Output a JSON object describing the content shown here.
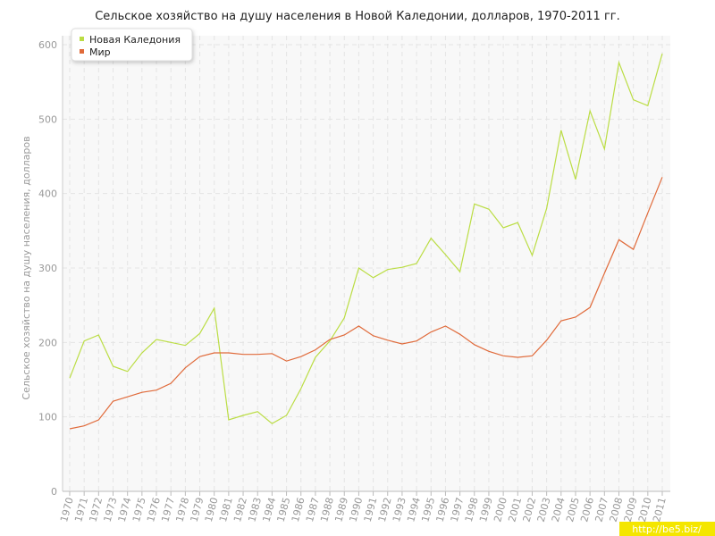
{
  "chart_data": {
    "type": "line",
    "title": "Сельское хозяйство на душу населения в Новой Каледонии, долларов, 1970-2011 гг.",
    "y_label": "Сельское хозяйство на душу населения, долларов",
    "categories": [
      "1970",
      "1971",
      "1972",
      "1973",
      "1974",
      "1975",
      "1976",
      "1977",
      "1978",
      "1979",
      "1980",
      "1981",
      "1982",
      "1983",
      "1984",
      "1985",
      "1986",
      "1987",
      "1988",
      "1989",
      "1990",
      "1991",
      "1992",
      "1993",
      "1994",
      "1995",
      "1996",
      "1997",
      "1998",
      "1999",
      "2000",
      "2001",
      "2002",
      "2003",
      "2004",
      "2005",
      "2006",
      "2007",
      "2008",
      "2009",
      "2010",
      "2011"
    ],
    "series": [
      {
        "name": "Новая Каледония",
        "color": "#bbdd44",
        "values": [
          152,
          202,
          210,
          168,
          161,
          186,
          204,
          200,
          196,
          212,
          246,
          96,
          102,
          107,
          91,
          102,
          138,
          180,
          202,
          233,
          300,
          287,
          298,
          301,
          306,
          340,
          318,
          295,
          386,
          379,
          354,
          361,
          317,
          380,
          485,
          419,
          511,
          460,
          576,
          526,
          518,
          588
        ]
      },
      {
        "name": "Мир",
        "color": "#e06a3a",
        "values": [
          84,
          88,
          96,
          121,
          127,
          133,
          136,
          145,
          166,
          181,
          186,
          186,
          184,
          184,
          185,
          175,
          181,
          190,
          204,
          210,
          222,
          209,
          203,
          198,
          202,
          214,
          222,
          211,
          197,
          188,
          182,
          180,
          182,
          203,
          229,
          234,
          247,
          293,
          338,
          325,
          374,
          422
        ]
      }
    ],
    "ylim": [
      0,
      600
    ],
    "yticks": [
      0,
      100,
      200,
      300,
      400,
      500,
      600
    ],
    "grid": true,
    "legend": "top-left",
    "source": "http://be5.biz/"
  }
}
